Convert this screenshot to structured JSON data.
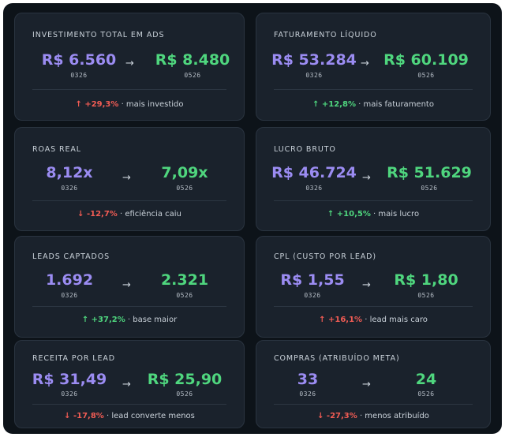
{
  "cards": [
    {
      "title": "INVESTIMENTO TOTAL EM ADS",
      "before": "R$ 6.560",
      "after": "R$ 8.480",
      "before_period": "0326",
      "after_period": "0526",
      "arrow": "→",
      "change": "↑ +29,3%",
      "change_kind": "bad",
      "note": " · mais investido"
    },
    {
      "title": "FATURAMENTO LÍQUIDO",
      "before": "R$ 53.284",
      "after": "R$ 60.109",
      "before_period": "0326",
      "after_period": "0526",
      "arrow": "→",
      "change": "↑ +12,8%",
      "change_kind": "good",
      "note": " · mais faturamento"
    },
    {
      "title": "ROAS REAL",
      "before": "8,12x",
      "after": "7,09x",
      "before_period": "0326",
      "after_period": "0526",
      "arrow": "→",
      "change": "↓ -12,7%",
      "change_kind": "bad",
      "note": " · eficiência caiu"
    },
    {
      "title": "LUCRO BRUTO",
      "before": "R$ 46.724",
      "after": "R$ 51.629",
      "before_period": "0326",
      "after_period": "0526",
      "arrow": "→",
      "change": "↑ +10,5%",
      "change_kind": "good",
      "note": " · mais lucro"
    },
    {
      "title": "LEADS CAPTADOS",
      "before": "1.692",
      "after": "2.321",
      "before_period": "0326",
      "after_period": "0526",
      "arrow": "→",
      "change": "↑ +37,2%",
      "change_kind": "good",
      "note": " · base maior"
    },
    {
      "title": "CPL (CUSTO POR LEAD)",
      "before": "R$ 1,55",
      "after": "R$ 1,80",
      "before_period": "0326",
      "after_period": "0526",
      "arrow": "→",
      "change": "↑ +16,1%",
      "change_kind": "bad",
      "note": " · lead mais caro"
    },
    {
      "title": "RECEITA POR LEAD",
      "before": "R$ 31,49",
      "after": "R$ 25,90",
      "before_period": "0326",
      "after_period": "0526",
      "arrow": "→",
      "change": "↓ -17,8%",
      "change_kind": "bad",
      "note": " · lead converte menos"
    },
    {
      "title": "COMPRAS (ATRIBUÍDO META)",
      "before": "33",
      "after": "24",
      "before_period": "0326",
      "after_period": "0526",
      "arrow": "→",
      "change": "↓ -27,3%",
      "change_kind": "bad",
      "note": " · menos atribuído"
    }
  ],
  "colors": {
    "before_value": "#9b8cf2",
    "after_value": "#4fd67e",
    "change_good": "#4fd67e",
    "change_bad": "#f25c54"
  }
}
